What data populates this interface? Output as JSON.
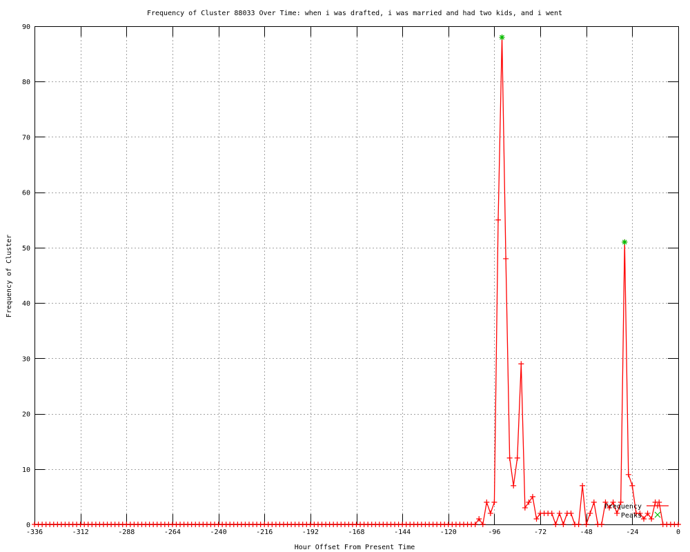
{
  "chart_data": {
    "type": "line",
    "title": "Frequency of Cluster 88033 Over Time: when i was drafted, i was married and had two kids, and i went",
    "xlabel": "Hour Offset From Present Time",
    "ylabel": "Frequency of Cluster",
    "xlim": [
      -336,
      0
    ],
    "ylim": [
      0,
      90
    ],
    "xticks": [
      -336,
      -312,
      -288,
      -264,
      -240,
      -216,
      -192,
      -168,
      -144,
      -120,
      -96,
      -72,
      -48,
      -24,
      0
    ],
    "yticks": [
      0,
      10,
      20,
      30,
      40,
      50,
      60,
      70,
      80,
      90
    ],
    "grid": true,
    "legend_position": "bottom-right",
    "series": [
      {
        "name": "Frequency",
        "color": "#ff0000",
        "style": "linespoints",
        "x": [
          -336,
          -334,
          -332,
          -330,
          -328,
          -326,
          -324,
          -322,
          -320,
          -318,
          -316,
          -314,
          -312,
          -310,
          -308,
          -306,
          -304,
          -302,
          -300,
          -298,
          -296,
          -294,
          -292,
          -290,
          -288,
          -286,
          -284,
          -282,
          -280,
          -278,
          -276,
          -274,
          -272,
          -270,
          -268,
          -266,
          -264,
          -262,
          -260,
          -258,
          -256,
          -254,
          -252,
          -250,
          -248,
          -246,
          -244,
          -242,
          -240,
          -238,
          -236,
          -234,
          -232,
          -230,
          -228,
          -226,
          -224,
          -222,
          -220,
          -218,
          -216,
          -214,
          -212,
          -210,
          -208,
          -206,
          -204,
          -202,
          -200,
          -198,
          -196,
          -194,
          -192,
          -190,
          -188,
          -186,
          -184,
          -182,
          -180,
          -178,
          -176,
          -174,
          -172,
          -170,
          -168,
          -166,
          -164,
          -162,
          -160,
          -158,
          -156,
          -154,
          -152,
          -150,
          -148,
          -146,
          -144,
          -142,
          -140,
          -138,
          -136,
          -134,
          -132,
          -130,
          -128,
          -126,
          -124,
          -122,
          -120,
          -118,
          -116,
          -114,
          -112,
          -110,
          -108,
          -106,
          -104,
          -102,
          -100,
          -98,
          -96,
          -94,
          -92,
          -90,
          -88,
          -86,
          -84,
          -82,
          -80,
          -78,
          -76,
          -74,
          -72,
          -70,
          -68,
          -66,
          -64,
          -62,
          -60,
          -58,
          -56,
          -54,
          -52,
          -50,
          -48,
          -46,
          -44,
          -42,
          -40,
          -38,
          -36,
          -34,
          -32,
          -30,
          -28,
          -26,
          -24,
          -22,
          -20,
          -18,
          -16,
          -14,
          -12,
          -10,
          -8,
          -6,
          -4,
          -2,
          0
        ],
        "values": [
          0,
          0,
          0,
          0,
          0,
          0,
          0,
          0,
          0,
          0,
          0,
          0,
          0,
          0,
          0,
          0,
          0,
          0,
          0,
          0,
          0,
          0,
          0,
          0,
          0,
          0,
          0,
          0,
          0,
          0,
          0,
          0,
          0,
          0,
          0,
          0,
          0,
          0,
          0,
          0,
          0,
          0,
          0,
          0,
          0,
          0,
          0,
          0,
          0,
          0,
          0,
          0,
          0,
          0,
          0,
          0,
          0,
          0,
          0,
          0,
          0,
          0,
          0,
          0,
          0,
          0,
          0,
          0,
          0,
          0,
          0,
          0,
          0,
          0,
          0,
          0,
          0,
          0,
          0,
          0,
          0,
          0,
          0,
          0,
          0,
          0,
          0,
          0,
          0,
          0,
          0,
          0,
          0,
          0,
          0,
          0,
          0,
          0,
          0,
          0,
          0,
          0,
          0,
          0,
          0,
          0,
          0,
          0,
          0,
          0,
          0,
          0,
          0,
          0,
          0,
          0,
          1,
          0,
          4,
          2,
          4,
          55,
          88,
          48,
          12,
          7,
          12,
          29,
          3,
          4,
          5,
          1,
          2,
          2,
          2,
          2,
          0,
          2,
          0,
          2,
          2,
          0,
          0,
          7,
          0,
          2,
          4,
          0,
          0,
          4,
          3,
          4,
          2,
          4,
          51,
          9,
          7,
          2,
          2,
          1,
          2,
          1,
          4,
          4,
          0,
          0,
          0,
          0,
          0
        ]
      },
      {
        "name": "Peaks",
        "color": "#00c000",
        "style": "points",
        "x": [
          -92,
          -28
        ],
        "values": [
          88,
          51
        ]
      }
    ]
  }
}
